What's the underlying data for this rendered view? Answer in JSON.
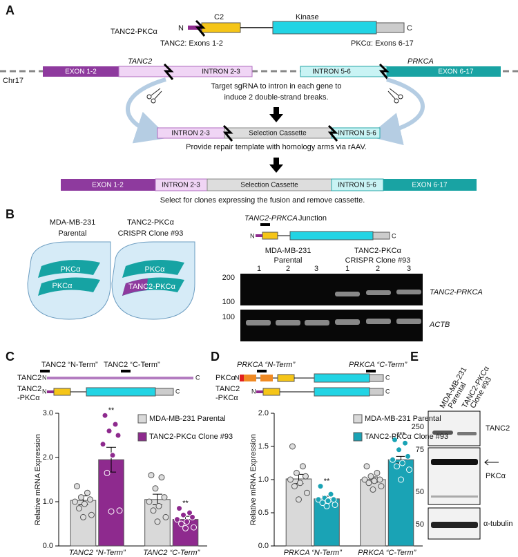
{
  "panels": {
    "A": "A",
    "B": "B",
    "C": "C",
    "D": "D",
    "E": "E"
  },
  "panelA": {
    "fusion_name": "TANC2-PKCα",
    "n": "N",
    "c": "C",
    "c2": "C2",
    "kinase": "Kinase",
    "tanc2_exons": "TANC2: Exons 1-2",
    "pkc_exons": "PKCα: Exons 6-17",
    "gene1": "TANC2",
    "gene2": "PRKCA",
    "chrom": "Chr17",
    "exon12": "EXON 1-2",
    "intron23": "INTRON 2-3",
    "intron56": "INTRON 5-6",
    "exon617": "EXON 6-17",
    "step1": [
      "Target sgRNA to intron in each gene to",
      "induce 2 double-strand breaks."
    ],
    "cassette": "Selection Cassette",
    "step2": "Provide repair template with homology arms via rAAV.",
    "step3": "Select for clones expressing the fusion and remove cassette."
  },
  "panelB": {
    "parental": [
      "MDA-MB-231",
      "Parental"
    ],
    "clone": [
      "TANC2-PKCα",
      "CRISPR Clone #93"
    ],
    "pkc": "PKCα",
    "fusion": "TANC2-PKCα",
    "junction_gene": "TANC2-PRKCA",
    "junction": "Junction",
    "n": "N",
    "c": "C",
    "gel_parental": [
      "MDA-MB-231",
      "Parental"
    ],
    "gel_clone": [
      "TANC2-PKCα",
      "CRISPR Clone #93"
    ],
    "lanes": [
      "1",
      "2",
      "3",
      "1",
      "2",
      "3"
    ],
    "markers": [
      "200",
      "100",
      "100"
    ],
    "row1": "TANC2-PRKCA",
    "row2": "ACTB"
  },
  "panelC_schematic": {
    "nterm": "TANC2 “N-Term”",
    "cterm": "TANC2 “C-Term”",
    "row1": "TANC2",
    "row2": [
      "TANC2",
      "-PKCα"
    ],
    "n": "N",
    "c": "C"
  },
  "panelD_schematic": {
    "nterm": "PRKCA “N-Term”",
    "cterm": "PRKCA “C-Term”",
    "row1": "PKCα",
    "row2": [
      "TANC2",
      "-PKCα"
    ],
    "n": "N",
    "c": "C"
  },
  "panelE": {
    "lanes": [
      [
        "MDA-MB-231",
        "Parental"
      ],
      [
        "TANC2-PKCα",
        "Clone #93"
      ]
    ],
    "markers": [
      "250",
      "75",
      "50",
      "50"
    ],
    "labels": [
      "TANC2",
      "PKCα",
      "α-tubulin"
    ]
  },
  "chart_data": [
    {
      "type": "bar",
      "ylabel": "Relative mRNA Expression",
      "categories": [
        "TANC2 “N-Term”",
        "TANC2 “C-Term”"
      ],
      "ylim": [
        0,
        3
      ],
      "yticks": [
        {
          "value": 0,
          "label": "0.0"
        },
        {
          "value": 1,
          "label": "1.0"
        },
        {
          "value": 2,
          "label": "2.0"
        },
        {
          "value": 3,
          "label": "3.0"
        }
      ],
      "series": [
        {
          "name": "MDA-MB-231 Parental",
          "color": "#d9d9d9",
          "values": [
            1.03,
            1.05
          ],
          "errors": [
            0.1,
            0.12
          ],
          "points": [
            [
              1.35,
              1.2,
              1.1,
              1.05,
              1.0,
              0.95,
              0.85,
              0.7,
              0.65
            ],
            [
              1.6,
              1.55,
              1.3,
              1.1,
              1.0,
              0.9,
              0.8,
              0.65,
              0.55
            ]
          ]
        },
        {
          "name": "TANC2-PKCα Clone #93",
          "color": "#8e2a8e",
          "values": [
            1.95,
            0.6
          ],
          "errors": [
            0.28,
            0.07
          ],
          "significance": [
            "**",
            "**"
          ],
          "points": [
            [
              2.95,
              2.75,
              2.6,
              2.5,
              2.3,
              2.05,
              1.65,
              0.8,
              0.78
            ],
            [
              0.85,
              0.75,
              0.7,
              0.65,
              0.6,
              0.55,
              0.5,
              0.42,
              0.4
            ]
          ]
        }
      ]
    },
    {
      "type": "bar",
      "ylabel": "Relative mRNA Expression",
      "categories": [
        "PRKCA “N-Term”",
        "PRKCA “C-Term”"
      ],
      "ylim": [
        0,
        2
      ],
      "yticks": [
        {
          "value": 0,
          "label": "0.0"
        },
        {
          "value": 0.5,
          "label": "0.5"
        },
        {
          "value": 1,
          "label": "1.0"
        },
        {
          "value": 1.5,
          "label": "1.5"
        },
        {
          "value": 2,
          "label": "2.0"
        }
      ],
      "series": [
        {
          "name": "MDA-MB-231 Parental",
          "color": "#d9d9d9",
          "values": [
            1.01,
            1.0
          ],
          "errors": [
            0.07,
            0.04
          ],
          "points": [
            [
              1.5,
              1.2,
              1.1,
              1.05,
              1.0,
              0.95,
              0.9,
              0.8,
              0.7
            ],
            [
              1.2,
              1.1,
              1.05,
              1.0,
              1.0,
              0.98,
              0.95,
              0.9,
              0.85
            ]
          ]
        },
        {
          "name": "TANC2-PKCα Clone #93",
          "color": "#1aa3b5",
          "values": [
            0.71,
            1.3
          ],
          "errors": [
            0.04,
            0.05
          ],
          "significance": [
            "**",
            "***"
          ],
          "points": [
            [
              0.9,
              0.78,
              0.72,
              0.7,
              0.7,
              0.68,
              0.65,
              0.62,
              0.6
            ],
            [
              1.6,
              1.55,
              1.45,
              1.35,
              1.3,
              1.25,
              1.2,
              1.15,
              1.0
            ]
          ]
        }
      ]
    }
  ]
}
